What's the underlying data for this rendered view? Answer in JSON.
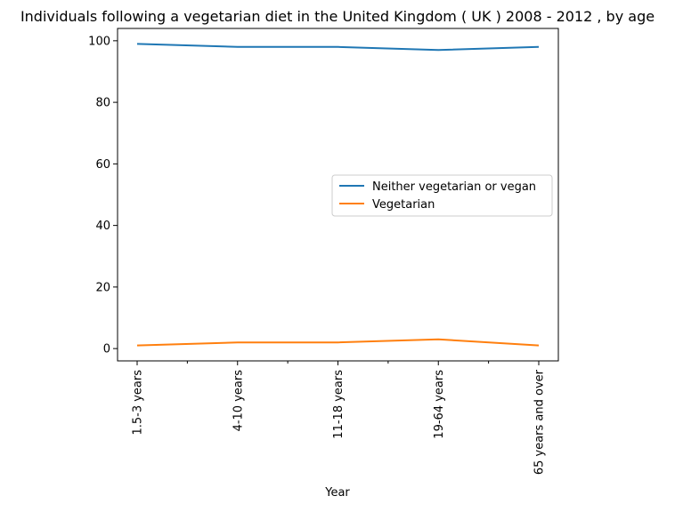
{
  "chart_data": {
    "type": "line",
    "title": "Individuals following a vegetarian diet in the United Kingdom ( UK ) 2008 - 2012 , by age",
    "xlabel": "Year",
    "ylabel": "",
    "categories": [
      "1.5-3 years",
      "4-10 years",
      "11-18 years",
      "19-64 years",
      "65 years and over"
    ],
    "series": [
      {
        "name": "Neither vegetarian or vegan",
        "values": [
          99,
          98,
          98,
          97,
          98
        ],
        "color": "#1f77b4"
      },
      {
        "name": "Vegetarian",
        "values": [
          1,
          2,
          2,
          3,
          1
        ],
        "color": "#ff7f0e"
      }
    ],
    "ylim": [
      -4,
      104
    ],
    "yticks": [
      0,
      20,
      40,
      60,
      80,
      100
    ],
    "grid": false,
    "legend_position": "center-right"
  }
}
